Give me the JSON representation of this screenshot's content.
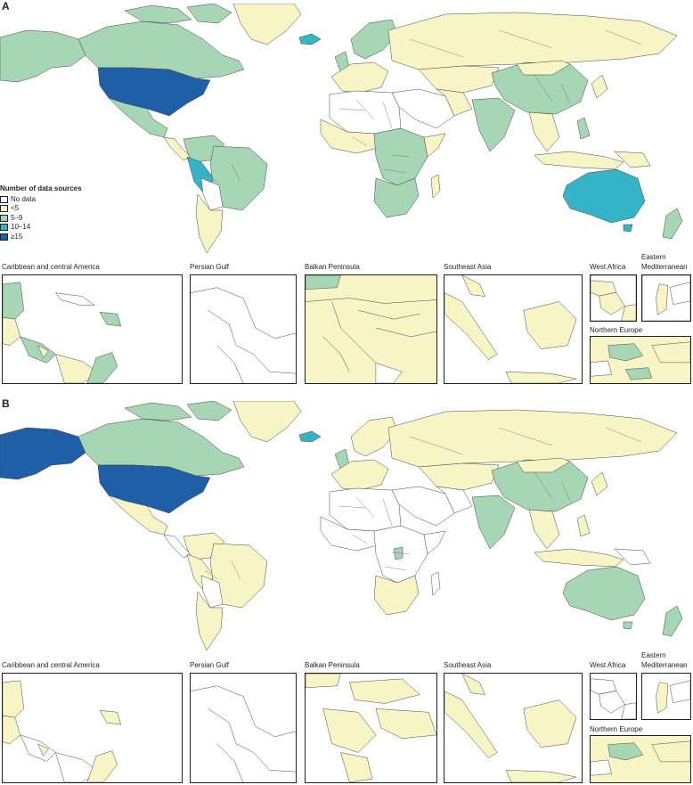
{
  "panels": [
    {
      "letter": "A",
      "legend": {
        "title": "Number of data sources",
        "items": [
          {
            "label": "No data",
            "color": "#ffffff"
          },
          {
            "label": "<5",
            "color": "#f7f5c6"
          },
          {
            "label": "5–9",
            "color": "#a6d6b4"
          },
          {
            "label": "10–14",
            "color": "#34b4c6"
          },
          {
            "label": "≥15",
            "color": "#1f5fa8"
          }
        ]
      },
      "insets": {
        "caribbean": "Caribbean and central America",
        "persian_gulf": "Persian Gulf",
        "balkan": "Balkan Peninsula",
        "southeast_asia": "Southeast Asia",
        "west_africa": "West Africa",
        "eastern_med_1": "Eastern",
        "eastern_med_2": "Mediterranean",
        "northern_europe": "Northern Europe"
      }
    },
    {
      "letter": "B",
      "insets": {
        "caribbean": "Caribbean and central America",
        "persian_gulf": "Persian Gulf",
        "balkan": "Balkan Peninsula",
        "southeast_asia": "Southeast Asia",
        "west_africa": "West Africa",
        "eastern_med_1": "Eastern",
        "eastern_med_2": "Mediterranean",
        "northern_europe": "Northern Europe"
      }
    }
  ]
}
